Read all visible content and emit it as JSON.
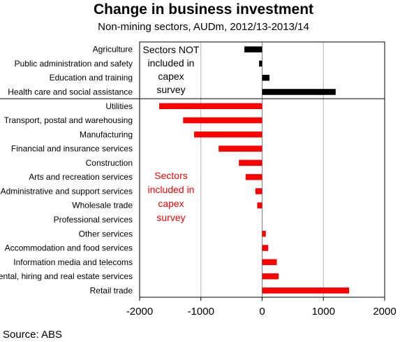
{
  "title": "Change in business investment",
  "subtitle": "Non-mining sectors, AUDm, 2012/13-2013/14",
  "source": "Source: ABS",
  "colors": {
    "not_in_survey": "#000000",
    "in_survey": "#ff0000",
    "grid": "#b3b3b3"
  },
  "annotations": {
    "not_included": [
      "Sectors NOT",
      "included in",
      "capex",
      "survey"
    ],
    "included": [
      "Sectors",
      "included in",
      "capex",
      "survey"
    ]
  },
  "chart_data": {
    "type": "bar",
    "orientation": "horizontal",
    "title": "Change in business investment",
    "subtitle": "Non-mining sectors, AUDm, 2012/13-2013/14",
    "categories": [
      "Agriculture",
      "Public administration and safety",
      "Education and training",
      "Health care and social assistance",
      "Utilities",
      "Transport, postal and warehousing",
      "Manufacturing",
      "Financial and insurance services",
      "Construction",
      "Arts and recreation services",
      "Administrative and support services",
      "Wholesale trade",
      "Professional services",
      "Other services",
      "Accommodation and food services",
      "Information media and telecoms",
      "Rental, hiring and real estate services",
      "Retail trade"
    ],
    "values": [
      -290,
      -50,
      120,
      1200,
      -1680,
      -1290,
      -1110,
      -710,
      -380,
      -270,
      -110,
      -80,
      0,
      60,
      100,
      240,
      270,
      1420
    ],
    "groups": [
      "not_in_survey",
      "not_in_survey",
      "not_in_survey",
      "not_in_survey",
      "in_survey",
      "in_survey",
      "in_survey",
      "in_survey",
      "in_survey",
      "in_survey",
      "in_survey",
      "in_survey",
      "in_survey",
      "in_survey",
      "in_survey",
      "in_survey",
      "in_survey",
      "in_survey"
    ],
    "xlim": [
      -2000,
      2000
    ],
    "xticks": [
      -2000,
      -1000,
      0,
      1000,
      2000
    ],
    "xlabel": "",
    "ylabel": "",
    "grid": "vertical",
    "legend": "none"
  }
}
